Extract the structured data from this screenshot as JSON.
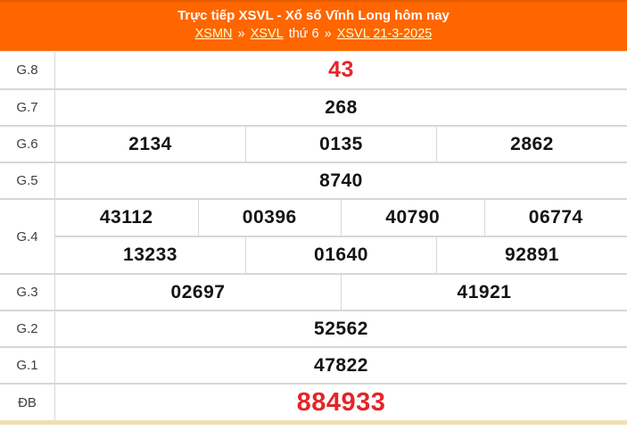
{
  "header": {
    "title": "Trực tiếp XSVL - Xổ số Vĩnh Long hôm nay",
    "breadcrumb": [
      {
        "text": "XSMN",
        "type": "link"
      },
      {
        "text": "»",
        "type": "separator"
      },
      {
        "text": "XSVL",
        "type": "link"
      },
      {
        "text": "thứ 6",
        "type": "text"
      },
      {
        "text": "»",
        "type": "separator"
      },
      {
        "text": "XSVL 21-3-2025",
        "type": "link"
      }
    ]
  },
  "results": {
    "rows": [
      {
        "id": "g8",
        "label": "G.8",
        "highlight": true,
        "groups": [
          [
            "43"
          ]
        ]
      },
      {
        "id": "g7",
        "label": "G.7",
        "highlight": false,
        "groups": [
          [
            "268"
          ]
        ]
      },
      {
        "id": "g6",
        "label": "G.6",
        "highlight": false,
        "groups": [
          [
            "2134",
            "0135",
            "2862"
          ]
        ]
      },
      {
        "id": "g5",
        "label": "G.5",
        "highlight": false,
        "groups": [
          [
            "8740"
          ]
        ]
      },
      {
        "id": "g4",
        "label": "G.4",
        "highlight": false,
        "groups": [
          [
            "43112",
            "00396",
            "40790",
            "06774"
          ],
          [
            "13233",
            "01640",
            "92891"
          ]
        ]
      },
      {
        "id": "g3",
        "label": "G.3",
        "highlight": false,
        "groups": [
          [
            "02697",
            "41921"
          ]
        ]
      },
      {
        "id": "g2",
        "label": "G.2",
        "highlight": false,
        "groups": [
          [
            "52562"
          ]
        ]
      },
      {
        "id": "g1",
        "label": "G.1",
        "highlight": false,
        "groups": [
          [
            "47822"
          ]
        ]
      },
      {
        "id": "db",
        "label": "ĐB",
        "highlight": true,
        "groups": [
          [
            "884933"
          ]
        ]
      }
    ]
  },
  "colors": {
    "header_bg": "#ff6600",
    "header_border": "#e65c00",
    "link": "#ffffcc",
    "number": "#141414",
    "highlight_number": "#e42528",
    "separator": "#d8d8d3",
    "footer_strip": "#f0dfb5"
  }
}
